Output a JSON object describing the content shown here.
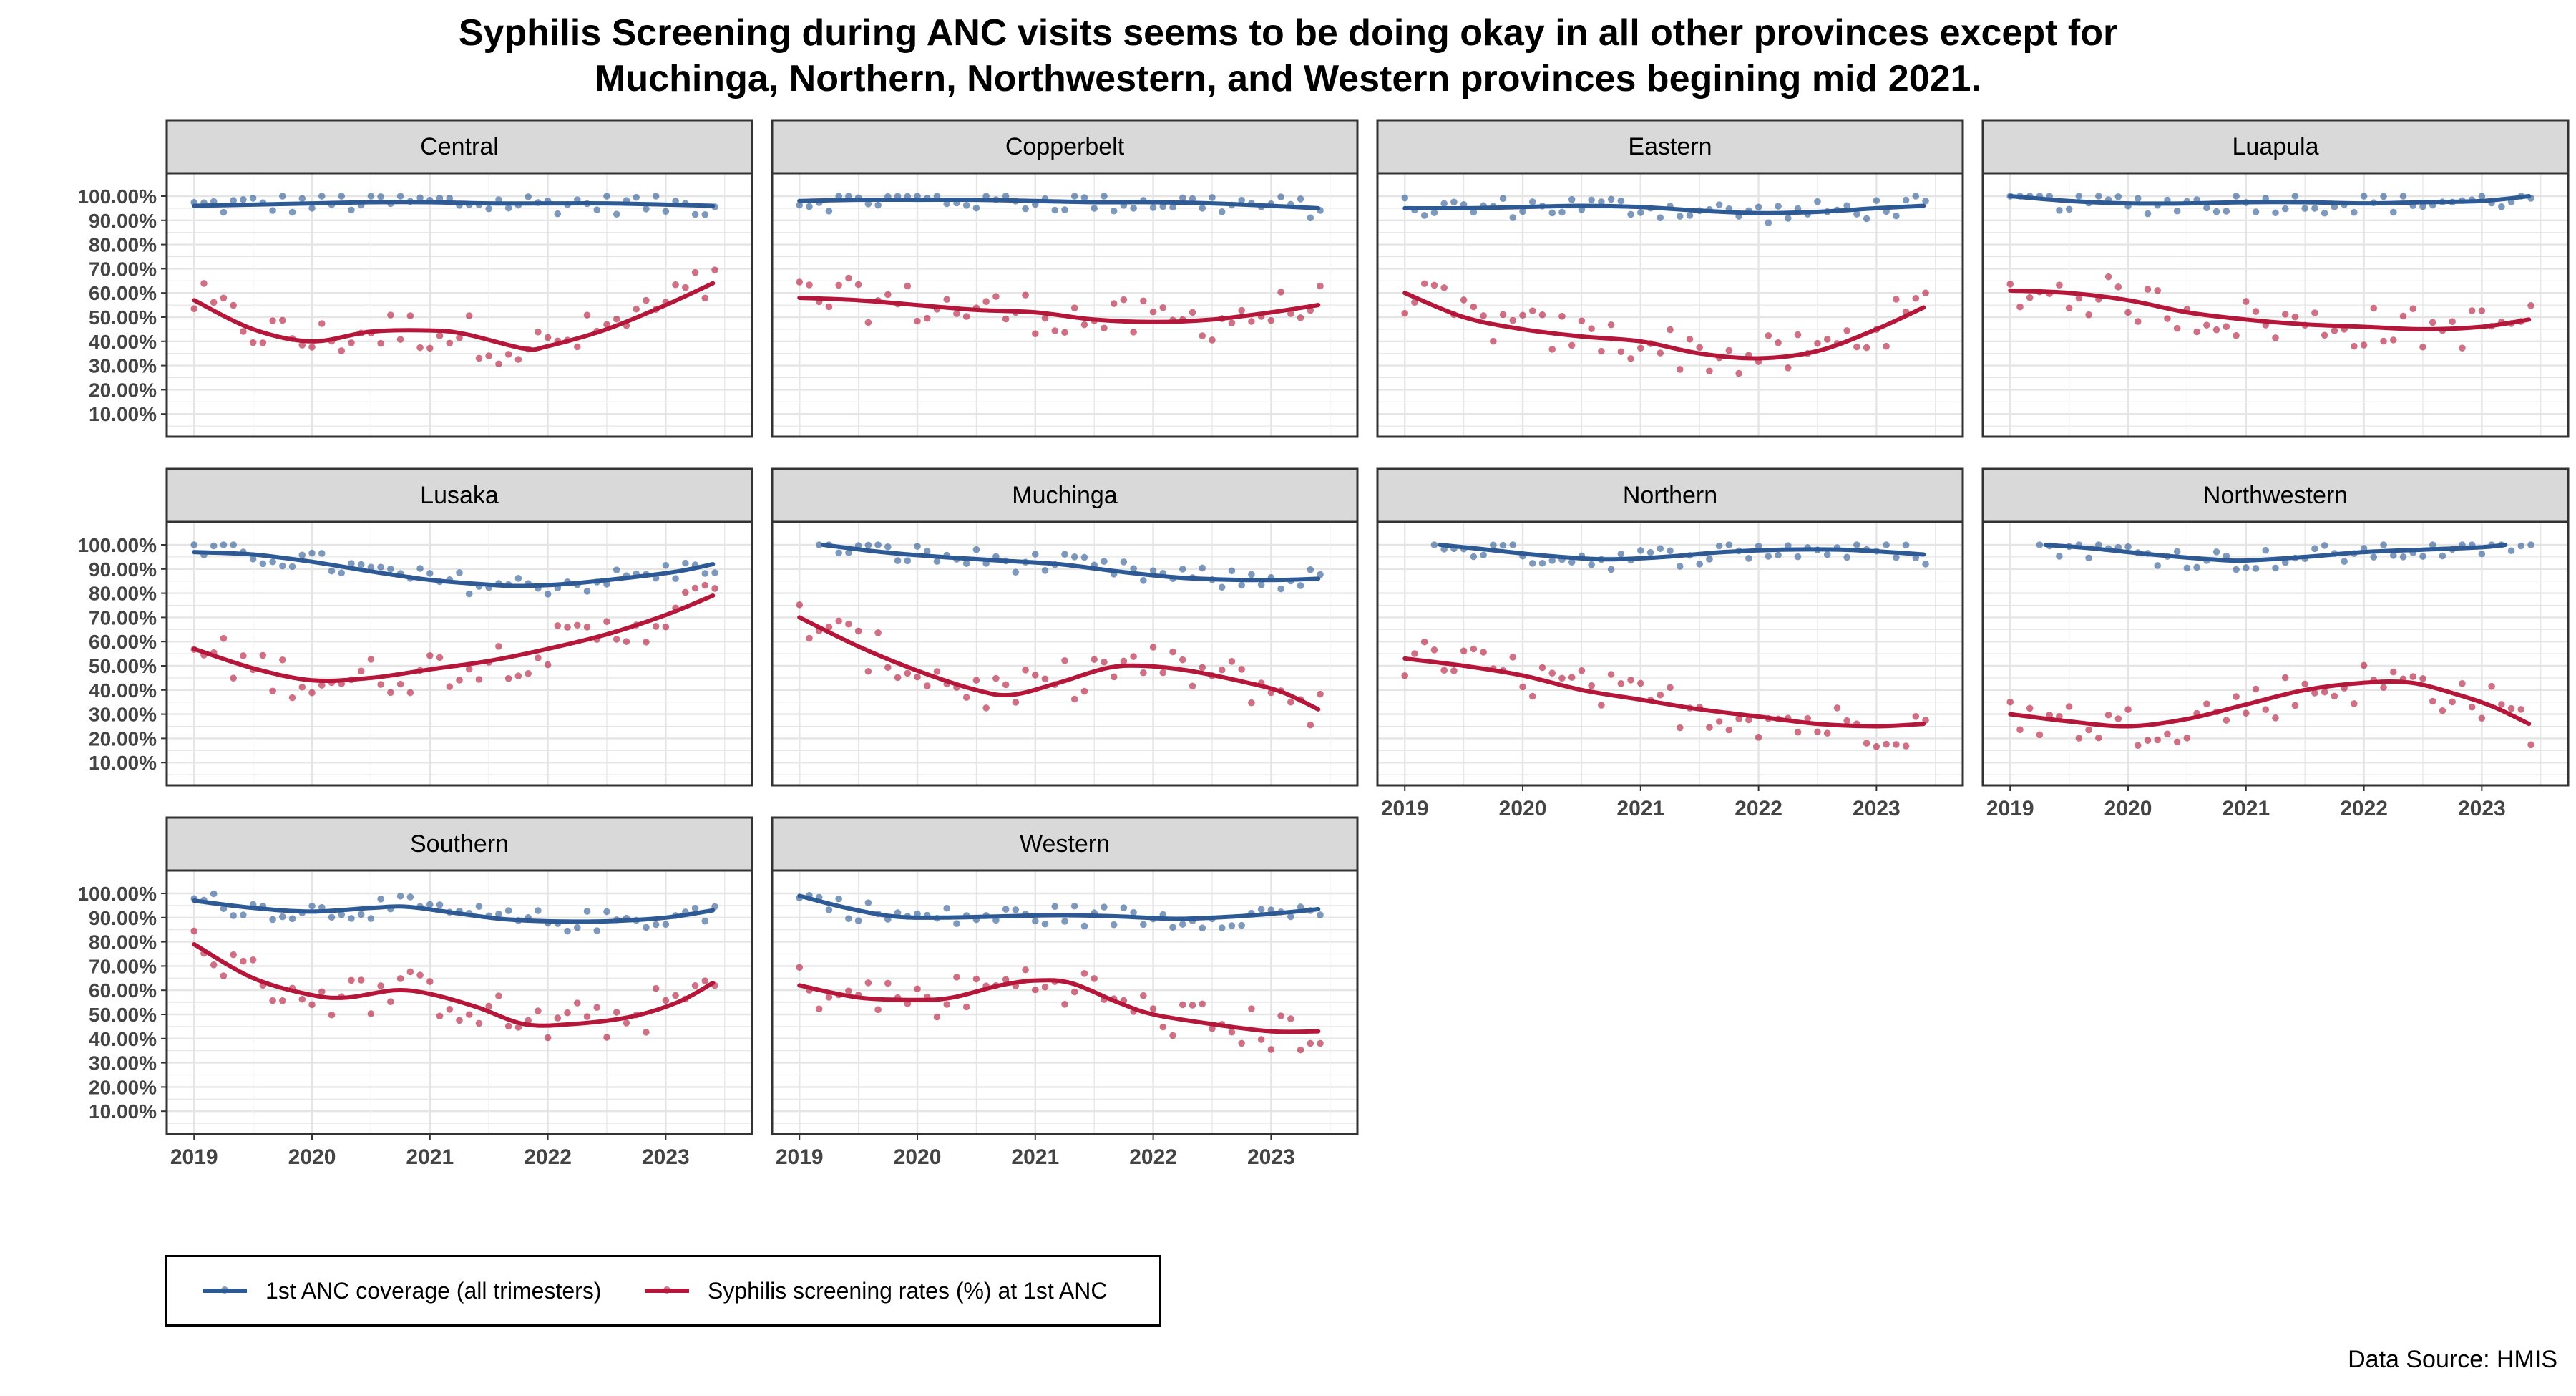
{
  "title_line1": "Syphilis Screening during ANC visits seems to be doing okay in all other provinces except for",
  "title_line2": "Muchinga, Northern, Northwestern, and Western provinces begining mid 2021.",
  "source": "Data Source: HMIS",
  "colors": {
    "coverage": "#2d5a94",
    "screening": "#b5173a",
    "strip_bg": "#d9d9d9",
    "grid": "#e5e5e5"
  },
  "legend": {
    "coverage": "1st ANC coverage (all trimesters)",
    "screening": "Syphilis screening rates (%) at 1st ANC"
  },
  "chart_data": {
    "type": "scatter",
    "layout": "facet grid 4 columns, 3 rows, scatter points with smoothed trend lines",
    "ylim": [
      0,
      100
    ],
    "y_ticks": [
      "10.00%",
      "20.00%",
      "30.00%",
      "40.00%",
      "50.00%",
      "60.00%",
      "70.00%",
      "80.00%",
      "90.00%",
      "100.00%"
    ],
    "x_ticks": [
      "2019",
      "2020",
      "2021",
      "2022",
      "2023"
    ],
    "x_range": [
      2018.95,
      2023.55
    ],
    "legend_position": "bottom-left",
    "grid": true,
    "series_names": [
      "1st ANC coverage (all trimesters)",
      "Syphilis screening rates (%) at 1st ANC"
    ],
    "panels": [
      {
        "name": "Central",
        "coverage_trend": [
          [
            2019,
            96
          ],
          [
            2019.5,
            96.5
          ],
          [
            2020,
            97
          ],
          [
            2020.5,
            97.5
          ],
          [
            2021,
            97.5
          ],
          [
            2021.5,
            97
          ],
          [
            2022,
            97
          ],
          [
            2022.5,
            97
          ],
          [
            2023,
            96.5
          ],
          [
            2023.4,
            96
          ]
        ],
        "screening_trend": [
          [
            2019,
            57
          ],
          [
            2019.5,
            45
          ],
          [
            2020,
            40
          ],
          [
            2020.5,
            44
          ],
          [
            2021,
            44.5
          ],
          [
            2021.3,
            43
          ],
          [
            2021.8,
            37
          ],
          [
            2022,
            38
          ],
          [
            2022.5,
            45
          ],
          [
            2023,
            55
          ],
          [
            2023.4,
            64
          ]
        ]
      },
      {
        "name": "Copperbelt",
        "coverage_trend": [
          [
            2019,
            98
          ],
          [
            2019.5,
            98.5
          ],
          [
            2020,
            98.5
          ],
          [
            2020.5,
            98.5
          ],
          [
            2021,
            98
          ],
          [
            2021.5,
            97.5
          ],
          [
            2022,
            97.5
          ],
          [
            2022.5,
            97
          ],
          [
            2023,
            96
          ],
          [
            2023.4,
            95
          ]
        ],
        "screening_trend": [
          [
            2019,
            58
          ],
          [
            2019.5,
            57
          ],
          [
            2020,
            55
          ],
          [
            2020.5,
            53
          ],
          [
            2021,
            52
          ],
          [
            2021.5,
            49
          ],
          [
            2022,
            48
          ],
          [
            2022.5,
            49
          ],
          [
            2023,
            52
          ],
          [
            2023.4,
            55
          ]
        ]
      },
      {
        "name": "Eastern",
        "coverage_trend": [
          [
            2019,
            95
          ],
          [
            2019.5,
            95
          ],
          [
            2020,
            95.5
          ],
          [
            2020.5,
            96
          ],
          [
            2021,
            95.5
          ],
          [
            2021.5,
            94
          ],
          [
            2022,
            93
          ],
          [
            2022.5,
            93.5
          ],
          [
            2023,
            95
          ],
          [
            2023.4,
            96
          ]
        ],
        "screening_trend": [
          [
            2019,
            60
          ],
          [
            2019.5,
            50
          ],
          [
            2020,
            45
          ],
          [
            2020.5,
            42
          ],
          [
            2021,
            40
          ],
          [
            2021.5,
            35
          ],
          [
            2022,
            33
          ],
          [
            2022.5,
            36
          ],
          [
            2023,
            45
          ],
          [
            2023.4,
            54
          ]
        ]
      },
      {
        "name": "Luapula",
        "coverage_trend": [
          [
            2019,
            100
          ],
          [
            2019.5,
            98
          ],
          [
            2020,
            97
          ],
          [
            2020.5,
            97
          ],
          [
            2021,
            97.5
          ],
          [
            2021.5,
            97.5
          ],
          [
            2022,
            97
          ],
          [
            2022.5,
            97.5
          ],
          [
            2023,
            98
          ],
          [
            2023.4,
            100
          ]
        ],
        "screening_trend": [
          [
            2019,
            61
          ],
          [
            2019.5,
            60
          ],
          [
            2020,
            57
          ],
          [
            2020.5,
            52
          ],
          [
            2021,
            49
          ],
          [
            2021.5,
            47
          ],
          [
            2022,
            46
          ],
          [
            2022.5,
            45
          ],
          [
            2023,
            46
          ],
          [
            2023.4,
            49
          ]
        ]
      },
      {
        "name": "Lusaka",
        "coverage_trend": [
          [
            2019,
            97
          ],
          [
            2019.5,
            96
          ],
          [
            2020,
            93
          ],
          [
            2020.5,
            89
          ],
          [
            2021,
            85.5
          ],
          [
            2021.5,
            83.5
          ],
          [
            2021.8,
            83
          ],
          [
            2022.2,
            84
          ],
          [
            2022.7,
            86.5
          ],
          [
            2023.1,
            89
          ],
          [
            2023.4,
            92
          ]
        ],
        "screening_trend": [
          [
            2019,
            57
          ],
          [
            2019.5,
            49
          ],
          [
            2020,
            44
          ],
          [
            2020.5,
            45
          ],
          [
            2021,
            48.5
          ],
          [
            2021.5,
            52
          ],
          [
            2022,
            57
          ],
          [
            2022.5,
            63
          ],
          [
            2023,
            71
          ],
          [
            2023.4,
            79
          ]
        ]
      },
      {
        "name": "Muchinga",
        "coverage_trend": [
          [
            2019.2,
            100
          ],
          [
            2019.7,
            97
          ],
          [
            2020.2,
            95
          ],
          [
            2020.7,
            93.5
          ],
          [
            2021.2,
            92
          ],
          [
            2021.7,
            89
          ],
          [
            2022.2,
            86.5
          ],
          [
            2022.7,
            85.5
          ],
          [
            2023.1,
            85.5
          ],
          [
            2023.4,
            86
          ]
        ],
        "screening_trend": [
          [
            2019,
            70
          ],
          [
            2019.5,
            58
          ],
          [
            2020,
            48
          ],
          [
            2020.5,
            40
          ],
          [
            2020.8,
            38
          ],
          [
            2021.2,
            43
          ],
          [
            2021.6,
            49
          ],
          [
            2021.9,
            50
          ],
          [
            2022.3,
            48
          ],
          [
            2022.8,
            43
          ],
          [
            2023.1,
            39
          ],
          [
            2023.4,
            32
          ]
        ]
      },
      {
        "name": "Northern",
        "coverage_trend": [
          [
            2019.3,
            100
          ],
          [
            2019.7,
            98
          ],
          [
            2020.2,
            95.5
          ],
          [
            2020.7,
            94
          ],
          [
            2021.2,
            95
          ],
          [
            2021.7,
            97
          ],
          [
            2022.2,
            98
          ],
          [
            2022.7,
            98
          ],
          [
            2023.1,
            97
          ],
          [
            2023.4,
            96
          ]
        ],
        "screening_trend": [
          [
            2019,
            53
          ],
          [
            2019.5,
            50
          ],
          [
            2020,
            46
          ],
          [
            2020.5,
            40
          ],
          [
            2021,
            36
          ],
          [
            2021.5,
            32
          ],
          [
            2022,
            29
          ],
          [
            2022.5,
            26
          ],
          [
            2023,
            25
          ],
          [
            2023.4,
            26
          ]
        ]
      },
      {
        "name": "Northwestern",
        "coverage_trend": [
          [
            2019.3,
            100
          ],
          [
            2019.7,
            98.5
          ],
          [
            2020.2,
            96
          ],
          [
            2020.7,
            94
          ],
          [
            2021,
            93.5
          ],
          [
            2021.5,
            95
          ],
          [
            2022,
            97
          ],
          [
            2022.5,
            98
          ],
          [
            2023,
            99
          ],
          [
            2023.2,
            100
          ]
        ],
        "screening_trend": [
          [
            2019,
            30
          ],
          [
            2019.5,
            27
          ],
          [
            2020,
            25
          ],
          [
            2020.5,
            28
          ],
          [
            2021,
            34
          ],
          [
            2021.5,
            40
          ],
          [
            2022,
            43
          ],
          [
            2022.4,
            43
          ],
          [
            2022.8,
            38
          ],
          [
            2023.1,
            33
          ],
          [
            2023.4,
            26
          ]
        ]
      },
      {
        "name": "Southern",
        "coverage_trend": [
          [
            2019,
            97
          ],
          [
            2019.5,
            94
          ],
          [
            2020,
            92.5
          ],
          [
            2020.5,
            94
          ],
          [
            2020.8,
            94.5
          ],
          [
            2021.2,
            92
          ],
          [
            2021.6,
            89.5
          ],
          [
            2022,
            88.5
          ],
          [
            2022.5,
            88.5
          ],
          [
            2023,
            90
          ],
          [
            2023.4,
            93
          ]
        ],
        "screening_trend": [
          [
            2019,
            79
          ],
          [
            2019.5,
            65
          ],
          [
            2020,
            58
          ],
          [
            2020.3,
            57
          ],
          [
            2020.7,
            60
          ],
          [
            2021,
            58.5
          ],
          [
            2021.4,
            53
          ],
          [
            2021.8,
            46
          ],
          [
            2022.2,
            46
          ],
          [
            2022.7,
            49
          ],
          [
            2023.1,
            55
          ],
          [
            2023.4,
            63
          ]
        ]
      },
      {
        "name": "Western",
        "coverage_trend": [
          [
            2019,
            99
          ],
          [
            2019.4,
            94
          ],
          [
            2019.8,
            90.5
          ],
          [
            2020.2,
            90
          ],
          [
            2020.7,
            90.5
          ],
          [
            2021.2,
            91
          ],
          [
            2021.7,
            90.5
          ],
          [
            2022.2,
            89.5
          ],
          [
            2022.7,
            90.5
          ],
          [
            2023.1,
            92
          ],
          [
            2023.4,
            93.5
          ]
        ],
        "screening_trend": [
          [
            2019,
            62
          ],
          [
            2019.5,
            57
          ],
          [
            2020,
            56
          ],
          [
            2020.3,
            57
          ],
          [
            2020.7,
            62
          ],
          [
            2021,
            64
          ],
          [
            2021.3,
            63
          ],
          [
            2021.7,
            55
          ],
          [
            2022,
            50
          ],
          [
            2022.5,
            46
          ],
          [
            2023,
            43
          ],
          [
            2023.4,
            43
          ]
        ]
      }
    ]
  }
}
